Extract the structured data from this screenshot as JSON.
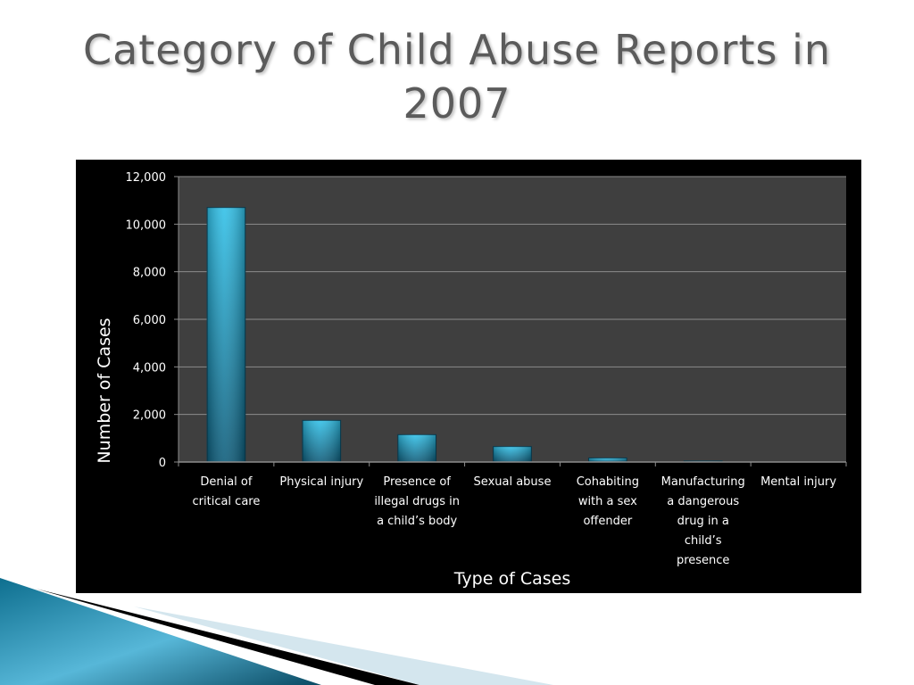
{
  "slide": {
    "title": "Category of Child Abuse Reports in 2007"
  },
  "colors": {
    "chart_background": "#000000",
    "plot_area": "#3f3f3f",
    "gridline": "#8c8c8c",
    "bar_top": "#2fc0e8",
    "bar_bottom": "#0b5a78",
    "text": "#ffffff",
    "title_text": "#5b5b5b"
  },
  "chart_data": {
    "type": "bar",
    "title": "",
    "xlabel": "Type of Cases",
    "ylabel": "Number of Cases",
    "ylim": [
      0,
      12000
    ],
    "yticks": [
      "0",
      "2,000",
      "4,000",
      "6,000",
      "8,000",
      "10,000",
      "12,000"
    ],
    "categories": [
      [
        "Denial of",
        "critical care"
      ],
      [
        "Physical injury"
      ],
      [
        "Presence of",
        "illegal drugs in",
        "a child’s body"
      ],
      [
        "Sexual abuse"
      ],
      [
        "Cohabiting",
        "with a sex",
        "offender"
      ],
      [
        "Manufacturing",
        "a dangerous",
        "drug in a",
        "child’s",
        "presence"
      ],
      [
        "Mental injury"
      ]
    ],
    "values": [
      10700,
      1750,
      1150,
      650,
      170,
      40,
      0
    ],
    "grid": true,
    "legend": "none"
  }
}
